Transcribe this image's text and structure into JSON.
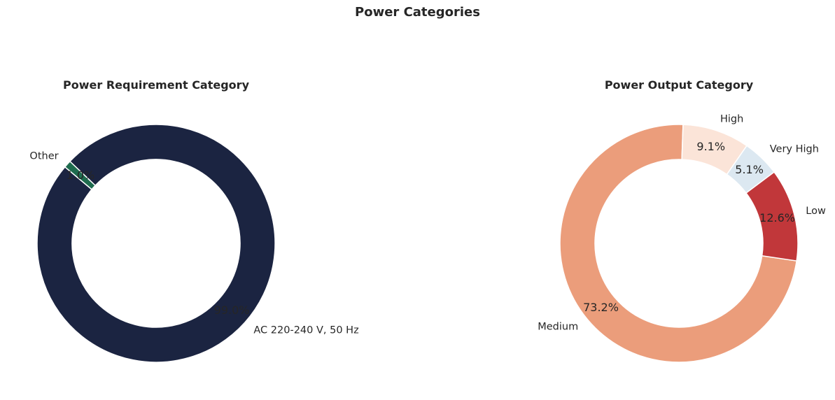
{
  "title": "Power Categories",
  "chart_data": [
    {
      "type": "pie",
      "donut": true,
      "title": "Power Requirement Category",
      "categories": [
        "AC 220-240 V, 50 Hz",
        "Other"
      ],
      "values": [
        99.0,
        1.0
      ],
      "percent_labels": [
        "99.0%",
        "1.0%"
      ],
      "colors": [
        "#1b2441",
        "#1e6b4e"
      ],
      "start_angle_deg": 140,
      "direction": "counterclockwise"
    },
    {
      "type": "pie",
      "donut": true,
      "title": "Power Output Category",
      "categories": [
        "Medium",
        "Low",
        "Very High",
        "High"
      ],
      "values": [
        73.2,
        12.6,
        5.1,
        9.1
      ],
      "percent_labels": [
        "73.2%",
        "12.6%",
        "5.1%",
        "9.1%"
      ],
      "colors": [
        "#eb9d7b",
        "#c1373a",
        "#dce8f1",
        "#fbe4d8"
      ],
      "start_angle_deg": 88,
      "direction": "counterclockwise"
    }
  ]
}
